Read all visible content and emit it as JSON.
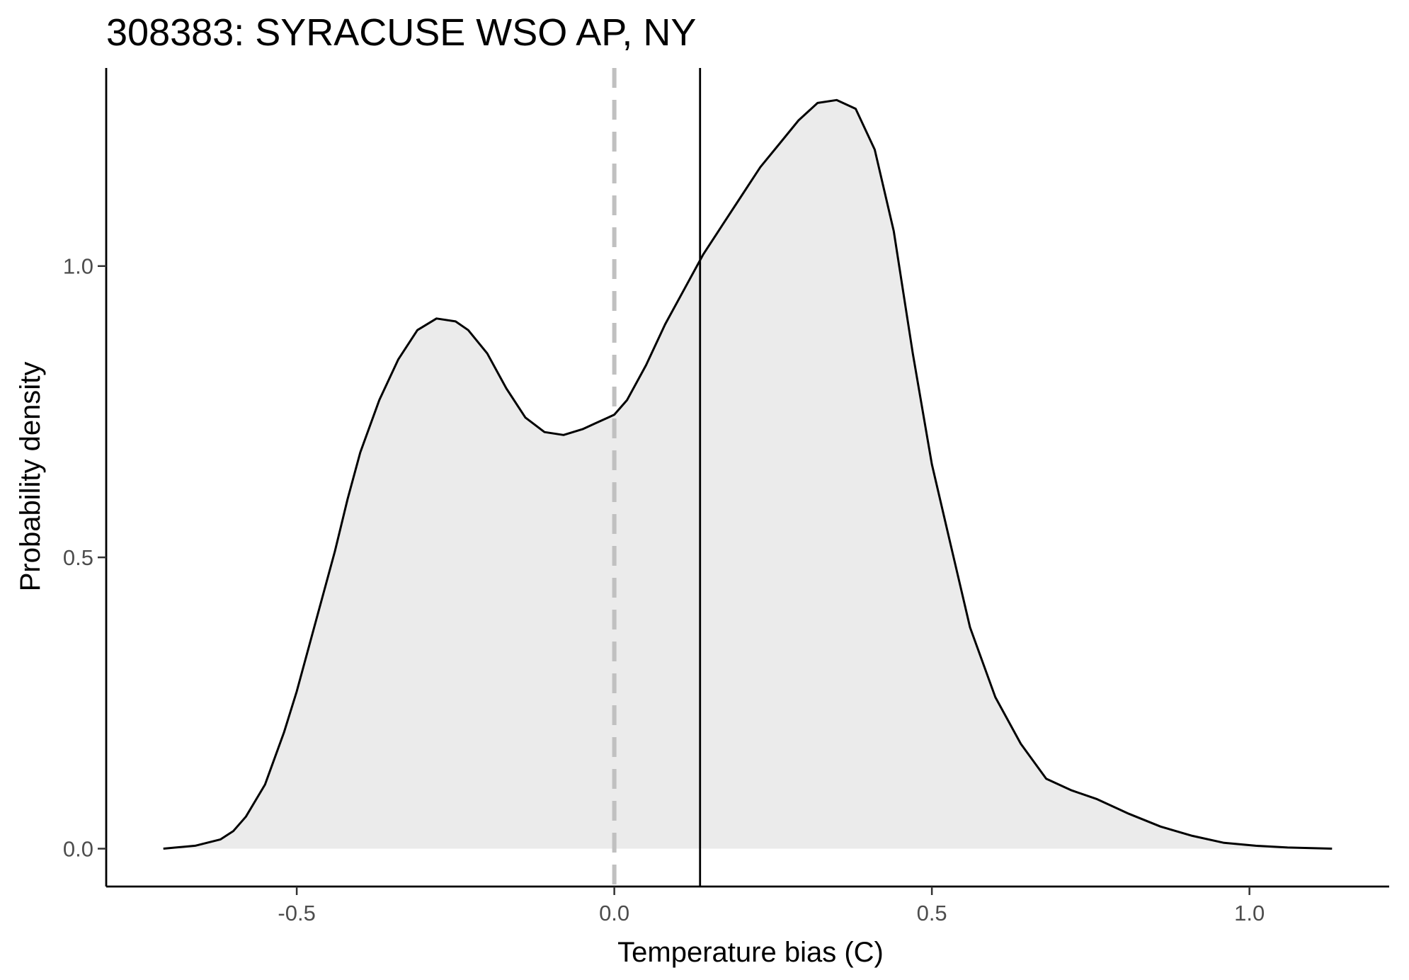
{
  "chart_data": {
    "type": "area",
    "title": "308383: SYRACUSE WSO AP, NY",
    "xlabel": "Temperature bias (C)",
    "ylabel": "Probability density",
    "xlim": [
      -0.8,
      1.22
    ],
    "ylim": [
      -0.065,
      1.34
    ],
    "x_ticks": [
      -0.5,
      0.0,
      0.5,
      1.0
    ],
    "x_tick_labels": [
      "-0.5",
      "0.0",
      "0.5",
      "1.0"
    ],
    "y_ticks": [
      0.0,
      0.5,
      1.0
    ],
    "y_tick_labels": [
      "0.0",
      "0.5",
      "1.0"
    ],
    "grid": false,
    "reference_lines": [
      {
        "x": 0.0,
        "style": "dashed",
        "color": "#c0c0c0"
      },
      {
        "x": 0.135,
        "style": "solid",
        "color": "#000000"
      }
    ],
    "series": [
      {
        "x": [
          -0.71,
          -0.66,
          -0.62,
          -0.6,
          -0.58,
          -0.55,
          -0.52,
          -0.5,
          -0.47,
          -0.44,
          -0.42,
          -0.4,
          -0.37,
          -0.34,
          -0.31,
          -0.28,
          -0.25,
          -0.23,
          -0.2,
          -0.17,
          -0.14,
          -0.11,
          -0.08,
          -0.05,
          -0.03,
          -0.01,
          0.0,
          0.02,
          0.05,
          0.08,
          0.11,
          0.14,
          0.17,
          0.2,
          0.23,
          0.26,
          0.29,
          0.32,
          0.35,
          0.38,
          0.41,
          0.44,
          0.47,
          0.5,
          0.53,
          0.56,
          0.6,
          0.64,
          0.68,
          0.72,
          0.76,
          0.81,
          0.86,
          0.91,
          0.96,
          1.01,
          1.06,
          1.13
        ],
        "y": [
          0.0,
          0.005,
          0.016,
          0.03,
          0.055,
          0.11,
          0.2,
          0.27,
          0.39,
          0.51,
          0.6,
          0.68,
          0.77,
          0.84,
          0.89,
          0.91,
          0.905,
          0.89,
          0.85,
          0.79,
          0.74,
          0.715,
          0.71,
          0.72,
          0.73,
          0.74,
          0.745,
          0.77,
          0.83,
          0.9,
          0.96,
          1.02,
          1.07,
          1.12,
          1.17,
          1.21,
          1.25,
          1.28,
          1.285,
          1.27,
          1.2,
          1.06,
          0.85,
          0.66,
          0.52,
          0.38,
          0.26,
          0.18,
          0.12,
          0.1,
          0.085,
          0.06,
          0.038,
          0.022,
          0.01,
          0.005,
          0.002,
          0.0
        ],
        "fill": "#ebebeb",
        "line_color": "#000000"
      }
    ]
  }
}
